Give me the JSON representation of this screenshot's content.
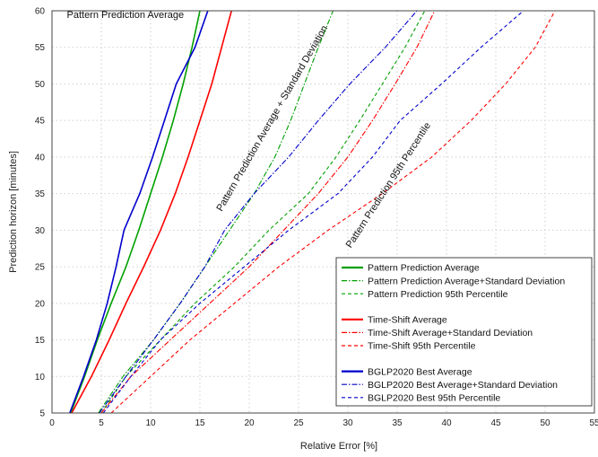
{
  "chart_data": {
    "type": "line",
    "xlabel": "Relative Error [%]",
    "ylabel": "Prediction horizon [minutes]",
    "xlim": [
      0,
      55
    ],
    "ylim": [
      5,
      60
    ],
    "xticks": [
      0,
      5,
      10,
      15,
      20,
      25,
      30,
      35,
      40,
      45,
      50,
      55
    ],
    "yticks": [
      5,
      10,
      15,
      20,
      25,
      30,
      35,
      40,
      45,
      50,
      55,
      60
    ],
    "grid": true,
    "legend_position": "bottom-right",
    "annotations": [
      {
        "text": "Pattern Prediction Average",
        "x": 1.5,
        "y": 59
      },
      {
        "text": "Pattern Prediction Average + Standard Deviation",
        "x": 17.2,
        "y": 32.5,
        "angle": -60
      },
      {
        "text": "Pattern Prediction 95th Percentile",
        "x": 30.3,
        "y": 27.5,
        "angle": -57
      }
    ],
    "series": [
      {
        "name": "Pattern Prediction Average",
        "color": "#00a000",
        "style": "solid",
        "width": 1.6,
        "points": [
          [
            1.9,
            5
          ],
          [
            3.3,
            10
          ],
          [
            4.6,
            15
          ],
          [
            6.0,
            20
          ],
          [
            7.5,
            25
          ],
          [
            8.8,
            30
          ],
          [
            10.0,
            35
          ],
          [
            11.2,
            40
          ],
          [
            12.3,
            45
          ],
          [
            13.3,
            50
          ],
          [
            14.2,
            55
          ],
          [
            15.0,
            60
          ]
        ]
      },
      {
        "name": "Pattern Prediction Average+Standard Deviation",
        "color": "#00a000",
        "style": "dashdot",
        "width": 1.1,
        "points": [
          [
            4.7,
            5
          ],
          [
            7.2,
            10
          ],
          [
            10.3,
            15
          ],
          [
            13.0,
            20
          ],
          [
            15.5,
            25
          ],
          [
            18.0,
            30
          ],
          [
            20.5,
            35
          ],
          [
            22.6,
            40
          ],
          [
            24.2,
            45
          ],
          [
            25.6,
            50
          ],
          [
            27.0,
            55
          ],
          [
            28.5,
            60
          ]
        ]
      },
      {
        "name": "Pattern Prediction 95th Percentile",
        "color": "#00a000",
        "style": "dashed",
        "width": 1.1,
        "points": [
          [
            5.0,
            5
          ],
          [
            7.5,
            10
          ],
          [
            11.0,
            15
          ],
          [
            14.5,
            20
          ],
          [
            18.5,
            25
          ],
          [
            22.0,
            30
          ],
          [
            26.0,
            35
          ],
          [
            28.8,
            40
          ],
          [
            31.2,
            45
          ],
          [
            33.5,
            50
          ],
          [
            35.8,
            55
          ],
          [
            37.8,
            60
          ]
        ]
      },
      {
        "name": "Time-Shift Average",
        "color": "#ff0000",
        "style": "solid",
        "width": 1.6,
        "points": [
          [
            2.0,
            5
          ],
          [
            4.0,
            10
          ],
          [
            5.8,
            15
          ],
          [
            7.5,
            20
          ],
          [
            9.3,
            25
          ],
          [
            11.0,
            30
          ],
          [
            12.5,
            35
          ],
          [
            13.8,
            40
          ],
          [
            15.0,
            45
          ],
          [
            16.2,
            50
          ],
          [
            17.2,
            55
          ],
          [
            18.2,
            60
          ]
        ]
      },
      {
        "name": "Time-Shift  Average+Standard Deviation",
        "color": "#ff0000",
        "style": "dashdot",
        "width": 1.1,
        "points": [
          [
            5.0,
            5
          ],
          [
            8.0,
            10
          ],
          [
            12.0,
            15
          ],
          [
            16.0,
            20
          ],
          [
            20.0,
            25
          ],
          [
            23.5,
            30
          ],
          [
            27.0,
            35
          ],
          [
            30.0,
            40
          ],
          [
            32.5,
            45
          ],
          [
            34.8,
            50
          ],
          [
            37.0,
            55
          ],
          [
            38.8,
            60
          ]
        ]
      },
      {
        "name": "Time-Shift  95th Percentile",
        "color": "#ff0000",
        "style": "dashed",
        "width": 1.1,
        "points": [
          [
            6.0,
            5
          ],
          [
            10.0,
            10
          ],
          [
            14.0,
            15
          ],
          [
            18.5,
            20
          ],
          [
            23.0,
            25
          ],
          [
            28.0,
            30
          ],
          [
            33.5,
            35
          ],
          [
            38.5,
            40
          ],
          [
            42.5,
            45
          ],
          [
            46.0,
            50
          ],
          [
            49.0,
            55
          ],
          [
            51.0,
            60
          ]
        ]
      },
      {
        "name": "BGLP2020 Best Average",
        "color": "#0000cc",
        "style": "solid",
        "width": 1.6,
        "points": [
          [
            1.8,
            5
          ],
          [
            3.2,
            10
          ],
          [
            4.5,
            15
          ],
          [
            5.6,
            20
          ],
          [
            6.5,
            25
          ],
          [
            7.3,
            30
          ],
          [
            8.9,
            35
          ],
          [
            10.2,
            40
          ],
          [
            11.4,
            45
          ],
          [
            12.6,
            50
          ],
          [
            14.5,
            55
          ],
          [
            15.8,
            60
          ]
        ]
      },
      {
        "name": "BGLP2020 Best Average+Standard Deviation",
        "color": "#0000cc",
        "style": "dashdot",
        "width": 1.1,
        "points": [
          [
            4.8,
            5
          ],
          [
            7.5,
            10
          ],
          [
            10.3,
            15
          ],
          [
            13.0,
            20
          ],
          [
            15.5,
            25
          ],
          [
            17.5,
            30
          ],
          [
            20.5,
            35
          ],
          [
            24.0,
            40
          ],
          [
            27.0,
            45
          ],
          [
            30.2,
            50
          ],
          [
            33.8,
            55
          ],
          [
            37.0,
            60
          ]
        ]
      },
      {
        "name": "BGLP2020 Best 95th Percentile",
        "color": "#0000cc",
        "style": "dashed",
        "width": 1.1,
        "points": [
          [
            5.2,
            5
          ],
          [
            8.0,
            10
          ],
          [
            11.0,
            15
          ],
          [
            15.0,
            20
          ],
          [
            19.5,
            25
          ],
          [
            24.0,
            30
          ],
          [
            29.0,
            35
          ],
          [
            32.5,
            40
          ],
          [
            35.3,
            45
          ],
          [
            39.5,
            50
          ],
          [
            43.5,
            55
          ],
          [
            47.8,
            60
          ]
        ]
      }
    ]
  }
}
